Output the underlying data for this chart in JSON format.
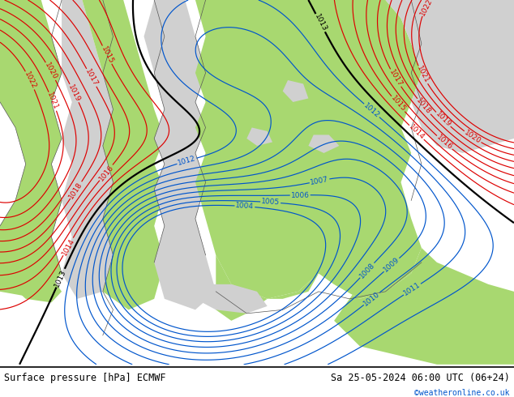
{
  "title_left": "Surface pressure [hPa] ECMWF",
  "title_right": "Sa 25-05-2024 06:00 UTC (06+24)",
  "credit": "©weatheronline.co.uk",
  "land_green_color": "#a8d870",
  "land_gray_color": "#d0d0d0",
  "water_color": "#c0c0c0",
  "isobar_red_color": "#dd0000",
  "isobar_blue_color": "#0055cc",
  "isobar_black_color": "#000000",
  "label_fontsize": 6.5,
  "footer_fontsize": 8.5,
  "credit_color": "#0055cc",
  "figsize": [
    6.34,
    4.9
  ],
  "dpi": 100
}
